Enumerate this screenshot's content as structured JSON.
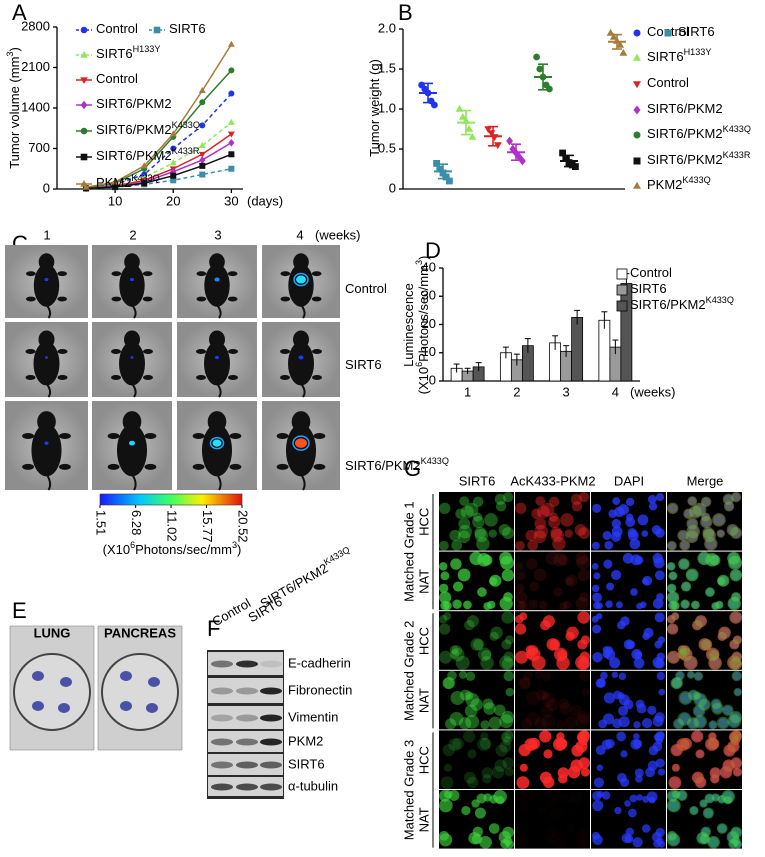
{
  "panel_letters": [
    "A",
    "B",
    "C",
    "D",
    "E",
    "F",
    "G"
  ],
  "chart_data": [
    {
      "type": "line",
      "y_label": [
        {
          "text": "Tumor volume (mm"
        },
        {
          "sup": "3"
        },
        {
          "text": ")"
        }
      ],
      "x_label": "(days)",
      "x": [
        5,
        10,
        15,
        20,
        25,
        30
      ],
      "xlim": [
        0,
        32
      ],
      "xticks": [
        10,
        20,
        30
      ],
      "ylim": [
        0,
        2800
      ],
      "yticks": [
        0,
        700,
        1400,
        2100,
        2800
      ],
      "series": [
        {
          "name": "Control",
          "color": "#2233ee",
          "marker": "circle",
          "dashed": true,
          "values": [
            20,
            80,
            250,
            700,
            1100,
            1650
          ]
        },
        {
          "name": "SIRT6",
          "color": "#3a8fa8",
          "marker": "square",
          "dashed": true,
          "values": [
            10,
            30,
            80,
            150,
            250,
            350
          ]
        },
        {
          "name": "SIRT6",
          "superscript": "H133Y",
          "color": "#8ee65a",
          "marker": "triangle-up",
          "dashed": true,
          "values": [
            15,
            60,
            200,
            450,
            750,
            1150
          ]
        },
        {
          "name": "Control",
          "color": "#dd2222",
          "marker": "triangle-down",
          "dashed": false,
          "values": [
            15,
            50,
            150,
            350,
            600,
            950
          ]
        },
        {
          "name": "SIRT6/PKM2",
          "color": "#b030c8",
          "marker": "diamond",
          "dashed": false,
          "values": [
            12,
            40,
            120,
            300,
            500,
            800
          ]
        },
        {
          "name": "SIRT6/PKM2",
          "superscript": "K433Q",
          "color": "#2e7d2e",
          "marker": "circle",
          "dashed": false,
          "values": [
            25,
            100,
            350,
            900,
            1500,
            2050
          ]
        },
        {
          "name": "SIRT6/PKM2",
          "superscript": "K433R",
          "color": "#111111",
          "marker": "square",
          "dashed": false,
          "values": [
            10,
            35,
            100,
            230,
            400,
            600
          ]
        },
        {
          "name": "PKM2",
          "superscript": "K433Q",
          "color": "#a67c3d",
          "marker": "triangle-up",
          "dashed": false,
          "values": [
            30,
            120,
            400,
            950,
            1700,
            2500
          ]
        }
      ]
    },
    {
      "type": "dot",
      "y_label": [
        {
          "text": "Tumor weight (g)"
        }
      ],
      "ylim": [
        0,
        2
      ],
      "yticks": [
        0,
        0.5,
        {
          "value": 1,
          "label": "1.0"
        },
        1.5,
        {
          "value": 2,
          "label": "2.0"
        }
      ],
      "series": [
        {
          "name": "Control",
          "color": "#2233ee",
          "marker": "circle",
          "values": [
            1.3,
            1.25,
            1.2,
            1.1,
            1.05
          ],
          "mean": 1.2,
          "sd": 0.12
        },
        {
          "name": "SIRT6",
          "color": "#3a8fa8",
          "marker": "square",
          "values": [
            0.32,
            0.25,
            0.2,
            0.15,
            0.1
          ],
          "mean": 0.22,
          "sd": 0.09
        },
        {
          "name": "SIRT6",
          "superscript": "H133Y",
          "color": "#8ee65a",
          "marker": "triangle-up",
          "values": [
            1.0,
            0.9,
            0.85,
            0.75,
            0.65
          ],
          "mean": 0.83,
          "sd": 0.15
        },
        {
          "name": "Control",
          "color": "#dd2222",
          "marker": "triangle-down",
          "values": [
            0.75,
            0.7,
            0.65,
            0.55
          ],
          "mean": 0.66,
          "sd": 0.12
        },
        {
          "name": "SIRT6/PKM2",
          "color": "#b030c8",
          "marker": "diamond",
          "values": [
            0.6,
            0.5,
            0.45,
            0.4,
            0.35
          ],
          "mean": 0.46,
          "sd": 0.1
        },
        {
          "name": "SIRT6/PKM2",
          "superscript": "K433Q",
          "color": "#2e7d2e",
          "marker": "circle",
          "values": [
            1.65,
            1.5,
            1.4,
            1.3,
            1.25
          ],
          "mean": 1.4,
          "sd": 0.16
        },
        {
          "name": "SIRT6/PKM2",
          "superscript": "K433R",
          "color": "#111111",
          "marker": "square",
          "values": [
            0.45,
            0.38,
            0.33,
            0.3,
            0.28
          ],
          "mean": 0.35,
          "sd": 0.07
        },
        {
          "name": "PKM2",
          "superscript": "K433Q",
          "color": "#a67c3d",
          "marker": "triangle-up",
          "values": [
            1.95,
            1.9,
            1.85,
            1.8,
            1.7
          ],
          "mean": 1.84,
          "sd": 0.09
        }
      ]
    },
    {
      "type": "bar",
      "y_label": [
        [
          {
            "text": "Luminescence"
          }
        ],
        [
          {
            "text": "(X10"
          },
          {
            "sup": "6"
          },
          {
            "text": "Photons/sec/mm"
          },
          {
            "sup": "3"
          },
          {
            "text": ")"
          }
        ]
      ],
      "categories": [
        "1",
        "2",
        "3",
        "4"
      ],
      "x_label": "(weeks)",
      "ylim": [
        0,
        40
      ],
      "yticks": [
        0,
        10,
        20,
        30,
        40
      ],
      "series": [
        {
          "name": "Control",
          "color": "#ffffff",
          "values": [
            4.5,
            10,
            13.5,
            21.5
          ],
          "errors": [
            1.5,
            2,
            2.5,
            3
          ]
        },
        {
          "name": "SIRT6",
          "color": "#9a9a9a",
          "values": [
            3.5,
            7.5,
            10.5,
            12
          ],
          "errors": [
            1,
            2,
            2,
            2.5
          ]
        },
        {
          "name": "SIRT6/PKM2",
          "superscript": "K433Q",
          "color": "#555555",
          "values": [
            5,
            12.5,
            22.5,
            34.5
          ],
          "errors": [
            1.5,
            2.5,
            2.5,
            3.5
          ]
        }
      ]
    }
  ],
  "panel_c": {
    "columns": [
      "1",
      "2",
      "3",
      "4"
    ],
    "unit": "(weeks)",
    "rows": [
      {
        "name": "Control"
      },
      {
        "name": "SIRT6"
      },
      {
        "name": "SIRT6/PKM2",
        "superscript": "K433Q"
      }
    ],
    "colorbar": {
      "lim": [
        1.51,
        20.52
      ],
      "ticks": [
        1.51,
        6.28,
        11.02,
        15.77,
        20.52
      ],
      "label": [
        {
          "text": "(X10"
        },
        {
          "sup": "6"
        },
        {
          "text": "Photons/sec/mm"
        },
        {
          "sup": "3"
        },
        {
          "text": ")"
        }
      ]
    }
  },
  "panel_e": {
    "labels": [
      "LUNG",
      "PANCREAS"
    ]
  },
  "panel_f": {
    "columns": [
      {
        "name": "Control"
      },
      {
        "name": "SIRT6"
      },
      {
        "name": "SIRT6/PKM2",
        "superscript": "K433Q"
      }
    ],
    "rows": [
      "E-cadherin",
      "Fibronectin",
      "Vimentin",
      "PKM2",
      "SIRT6",
      "α-tubulin"
    ]
  },
  "panel_g": {
    "columns": [
      "SIRT6",
      "AcK433-PKM2",
      "DAPI",
      "Merge"
    ],
    "groups": [
      {
        "label": "Matched Grade 1",
        "rows": [
          "HCC",
          "NAT"
        ]
      },
      {
        "label": "Matched Grade 2",
        "rows": [
          "HCC",
          "NAT"
        ]
      },
      {
        "label": "Matched Grade 3",
        "rows": [
          "HCC",
          "NAT"
        ]
      }
    ]
  }
}
